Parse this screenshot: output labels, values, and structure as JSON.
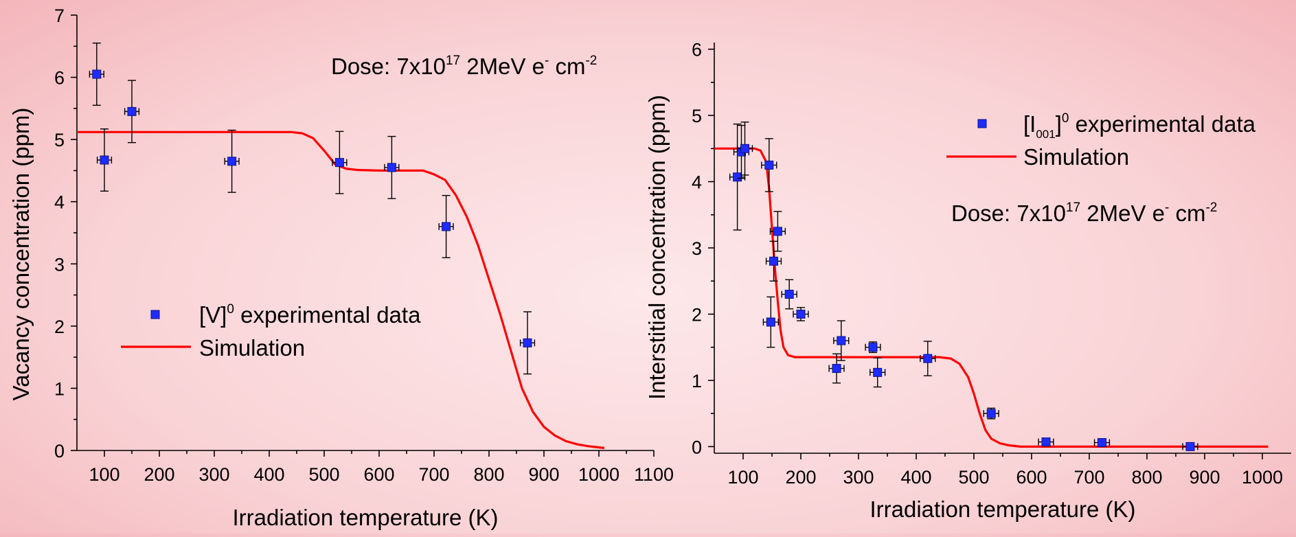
{
  "chart_data": [
    {
      "type": "scatter",
      "xlabel": "Irradiation temperature (K)",
      "ylabel": "Vacancy concentration (ppm)",
      "xlim": [
        50,
        1100
      ],
      "ylim": [
        0,
        7
      ],
      "xticks": [
        100,
        200,
        300,
        400,
        500,
        600,
        700,
        800,
        900,
        1000,
        1100
      ],
      "yticks": [
        0,
        1,
        2,
        3,
        4,
        5,
        6,
        7
      ],
      "annotation": {
        "prefix": "Dose: 7x10",
        "sup": "17",
        "mid": " 2MeV e",
        "sup2": "-",
        "unit": " cm",
        "sup3": "-2"
      },
      "legend": {
        "placement": "center-left",
        "experimental": {
          "pre": "[V]",
          "sub": "",
          "sup": "0",
          "post": " experimental data"
        },
        "simulation": "Simulation"
      },
      "series": [
        {
          "name": "experimental data",
          "kind": "scatter-errorbars",
          "points": [
            {
              "x": 86,
              "y": 6.05,
              "xerr": 13,
              "yerr": 0.5
            },
            {
              "x": 100,
              "y": 4.67,
              "xerr": 13,
              "yerr": 0.5
            },
            {
              "x": 150,
              "y": 5.45,
              "xerr": 13,
              "yerr": 0.5
            },
            {
              "x": 332,
              "y": 4.65,
              "xerr": 13,
              "yerr": 0.5
            },
            {
              "x": 528,
              "y": 4.63,
              "xerr": 13,
              "yerr": 0.5
            },
            {
              "x": 623,
              "y": 4.55,
              "xerr": 13,
              "yerr": 0.5
            },
            {
              "x": 722,
              "y": 3.6,
              "xerr": 13,
              "yerr": 0.5
            },
            {
              "x": 870,
              "y": 1.73,
              "xerr": 13,
              "yerr": 0.5
            }
          ]
        },
        {
          "name": "Simulation",
          "kind": "line",
          "color": "#ff0000",
          "points": [
            [
              50,
              5.12
            ],
            [
              440,
              5.12
            ],
            [
              460,
              5.1
            ],
            [
              480,
              5.02
            ],
            [
              500,
              4.82
            ],
            [
              520,
              4.6
            ],
            [
              540,
              4.53
            ],
            [
              560,
              4.51
            ],
            [
              600,
              4.5
            ],
            [
              680,
              4.5
            ],
            [
              700,
              4.44
            ],
            [
              720,
              4.35
            ],
            [
              740,
              4.1
            ],
            [
              760,
              3.75
            ],
            [
              780,
              3.3
            ],
            [
              800,
              2.75
            ],
            [
              820,
              2.2
            ],
            [
              840,
              1.6
            ],
            [
              860,
              1.0
            ],
            [
              880,
              0.62
            ],
            [
              900,
              0.38
            ],
            [
              920,
              0.24
            ],
            [
              940,
              0.15
            ],
            [
              960,
              0.1
            ],
            [
              980,
              0.07
            ],
            [
              1000,
              0.05
            ],
            [
              1010,
              0.04
            ]
          ]
        }
      ]
    },
    {
      "type": "scatter",
      "xlabel": "Irradiation temperature (K)",
      "ylabel": "Interstitial concentration (ppm)",
      "xlim": [
        50,
        1050
      ],
      "ylim": [
        -0.1,
        6.1
      ],
      "xticks": [
        100,
        200,
        300,
        400,
        500,
        600,
        700,
        800,
        900,
        1000
      ],
      "yticks": [
        0,
        1,
        2,
        3,
        4,
        5,
        6
      ],
      "annotation": {
        "prefix": "Dose: 7x10",
        "sup": "17",
        "mid": " 2MeV e",
        "sup2": "-",
        "unit": " cm",
        "sup3": "-2"
      },
      "legend": {
        "placement": "top-right",
        "experimental": {
          "pre": "[I",
          "sub": "001",
          "sup": "0",
          "post": " experimental data"
        },
        "simulation": "Simulation"
      },
      "series": [
        {
          "name": "experimental data",
          "kind": "scatter-errorbars",
          "points": [
            {
              "x": 90,
              "y": 4.07,
              "xerr": 13,
              "yerr": 0.8
            },
            {
              "x": 97,
              "y": 4.45,
              "xerr": 13,
              "yerr": 0.4
            },
            {
              "x": 103,
              "y": 4.5,
              "xerr": 13,
              "yerr": 0.4
            },
            {
              "x": 145,
              "y": 4.25,
              "xerr": 13,
              "yerr": 0.4
            },
            {
              "x": 148,
              "y": 1.88,
              "xerr": 13,
              "yerr": 0.38
            },
            {
              "x": 153,
              "y": 2.8,
              "xerr": 13,
              "yerr": 0.3
            },
            {
              "x": 160,
              "y": 3.25,
              "xerr": 13,
              "yerr": 0.3
            },
            {
              "x": 180,
              "y": 2.3,
              "xerr": 13,
              "yerr": 0.22
            },
            {
              "x": 200,
              "y": 2.0,
              "xerr": 13,
              "yerr": 0.1
            },
            {
              "x": 262,
              "y": 1.18,
              "xerr": 13,
              "yerr": 0.22
            },
            {
              "x": 270,
              "y": 1.6,
              "xerr": 13,
              "yerr": 0.3
            },
            {
              "x": 325,
              "y": 1.5,
              "xerr": 13,
              "yerr": 0.08
            },
            {
              "x": 333,
              "y": 1.12,
              "xerr": 13,
              "yerr": 0.22
            },
            {
              "x": 420,
              "y": 1.33,
              "xerr": 13,
              "yerr": 0.26
            },
            {
              "x": 530,
              "y": 0.5,
              "xerr": 13,
              "yerr": 0.08
            },
            {
              "x": 625,
              "y": 0.07,
              "xerr": 13,
              "yerr": 0.03
            },
            {
              "x": 722,
              "y": 0.06,
              "xerr": 13,
              "yerr": 0.03
            },
            {
              "x": 875,
              "y": 0.0,
              "xerr": 13,
              "yerr": 0.02
            }
          ]
        },
        {
          "name": "Simulation",
          "kind": "line",
          "color": "#ff0000",
          "points": [
            [
              50,
              4.5
            ],
            [
              120,
              4.5
            ],
            [
              130,
              4.47
            ],
            [
              140,
              4.3
            ],
            [
              145,
              3.9
            ],
            [
              150,
              3.3
            ],
            [
              155,
              2.7
            ],
            [
              160,
              2.2
            ],
            [
              165,
              1.75
            ],
            [
              170,
              1.5
            ],
            [
              178,
              1.38
            ],
            [
              190,
              1.35
            ],
            [
              440,
              1.35
            ],
            [
              460,
              1.33
            ],
            [
              475,
              1.25
            ],
            [
              490,
              1.05
            ],
            [
              500,
              0.8
            ],
            [
              510,
              0.5
            ],
            [
              520,
              0.25
            ],
            [
              530,
              0.12
            ],
            [
              545,
              0.05
            ],
            [
              560,
              0.02
            ],
            [
              580,
              0.0
            ],
            [
              1010,
              0.0
            ]
          ]
        }
      ]
    }
  ]
}
